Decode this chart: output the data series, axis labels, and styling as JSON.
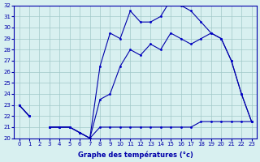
{
  "xlabel": "Graphe des températures (°c)",
  "ylim": [
    20,
    32
  ],
  "yticks": [
    20,
    21,
    22,
    23,
    24,
    25,
    26,
    27,
    28,
    29,
    30,
    31,
    32
  ],
  "bg_color": "#d8f0f0",
  "grid_color": "#a0c8c8",
  "line_color": "#0000aa",
  "marker_color": "#0000cc",
  "top_line": [
    23,
    22,
    null,
    21,
    21,
    21,
    20.5,
    20,
    26.5,
    29.5,
    29,
    31.5,
    30.5,
    30.5,
    31,
    32.5,
    32,
    31.5,
    30.5,
    29.5,
    29,
    27,
    24,
    21.5
  ],
  "bot_line": [
    23,
    22,
    null,
    21,
    21,
    21,
    20.5,
    20,
    21,
    21,
    21,
    21,
    21,
    21,
    21,
    21,
    21,
    21,
    21.5,
    21.5,
    21.5,
    21.5,
    21.5,
    21.5
  ],
  "mid_line": [
    23,
    22,
    null,
    21,
    21,
    21,
    20.5,
    20,
    23.5,
    24,
    26.5,
    28,
    27.5,
    28.5,
    28,
    29.5,
    29,
    28.5,
    29,
    29.5,
    29,
    27,
    24,
    21.5
  ]
}
